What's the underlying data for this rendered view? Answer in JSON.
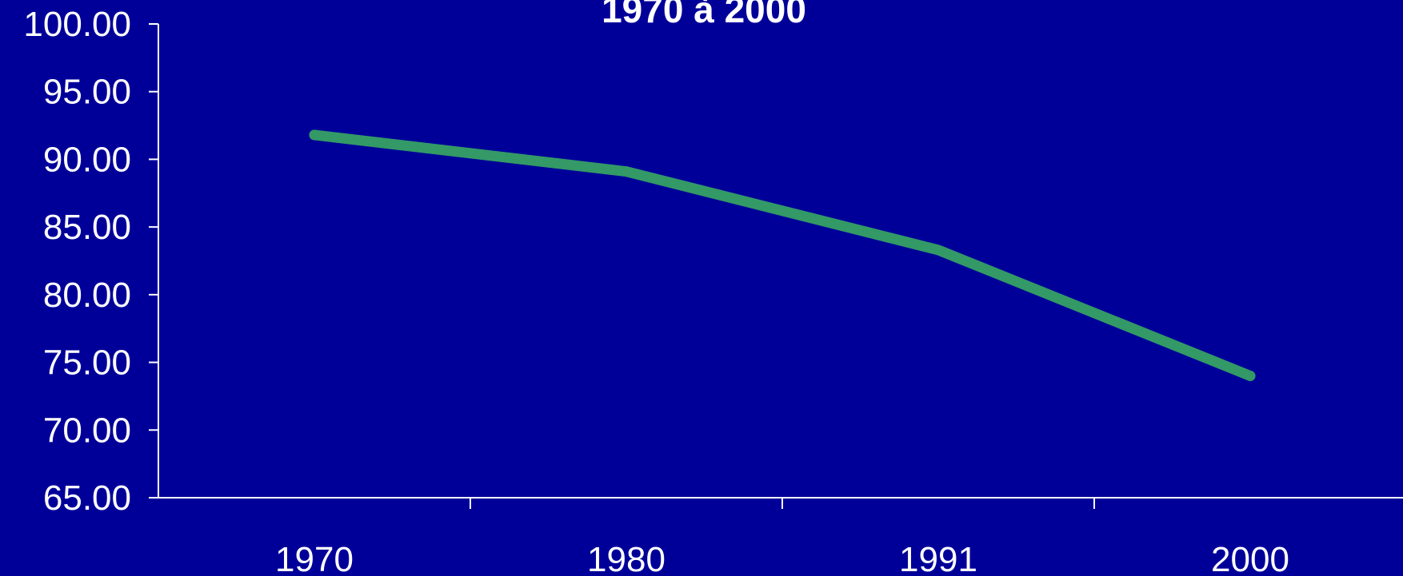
{
  "chart_data": {
    "type": "line",
    "title": "1970 à 2000",
    "xlabel": "",
    "ylabel": "",
    "categories": [
      "1970",
      "1980",
      "1991",
      "2000"
    ],
    "series": [
      {
        "values": [
          91.8,
          89.1,
          83.3,
          74.0
        ]
      }
    ],
    "ylim": [
      65,
      100
    ],
    "yticks": [
      "65.00",
      "70.00",
      "75.00",
      "80.00",
      "85.00",
      "90.00",
      "95.00",
      "100.00"
    ],
    "grid": false,
    "legend": "none",
    "colors": {
      "background": "#000099",
      "line": "#339966",
      "axis": "#ffffff",
      "text": "#ffffff"
    }
  }
}
